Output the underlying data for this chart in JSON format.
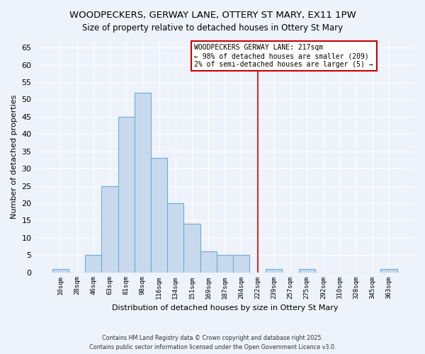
{
  "title": "WOODPECKERS, GERWAY LANE, OTTERY ST MARY, EX11 1PW",
  "subtitle": "Size of property relative to detached houses in Ottery St Mary",
  "xlabel": "Distribution of detached houses by size in Ottery St Mary",
  "ylabel": "Number of detached properties",
  "bin_labels": [
    "10sqm",
    "28sqm",
    "46sqm",
    "63sqm",
    "81sqm",
    "98sqm",
    "116sqm",
    "134sqm",
    "151sqm",
    "169sqm",
    "187sqm",
    "204sqm",
    "222sqm",
    "239sqm",
    "257sqm",
    "275sqm",
    "292sqm",
    "310sqm",
    "328sqm",
    "345sqm",
    "363sqm"
  ],
  "bin_counts": [
    1,
    0,
    5,
    25,
    45,
    52,
    33,
    20,
    14,
    6,
    5,
    5,
    0,
    1,
    0,
    1,
    0,
    0,
    0,
    0,
    1
  ],
  "bar_color": "#c8d9ee",
  "bar_edge_color": "#6baed6",
  "vline_x_idx": 12,
  "vline_color": "#cc0000",
  "ylim": [
    0,
    67
  ],
  "yticks": [
    0,
    5,
    10,
    15,
    20,
    25,
    30,
    35,
    40,
    45,
    50,
    55,
    60,
    65
  ],
  "legend_title": "WOODPECKERS GERWAY LANE: 217sqm",
  "legend_line1": "← 98% of detached houses are smaller (209)",
  "legend_line2": "2% of semi-detached houses are larger (5) →",
  "legend_box_color": "#ffffff",
  "legend_border_color": "#cc0000",
  "footer1": "Contains HM Land Registry data © Crown copyright and database right 2025.",
  "footer2": "Contains public sector information licensed under the Open Government Licence v3.0.",
  "bg_color": "#eef2fb",
  "grid_color": "#ffffff"
}
